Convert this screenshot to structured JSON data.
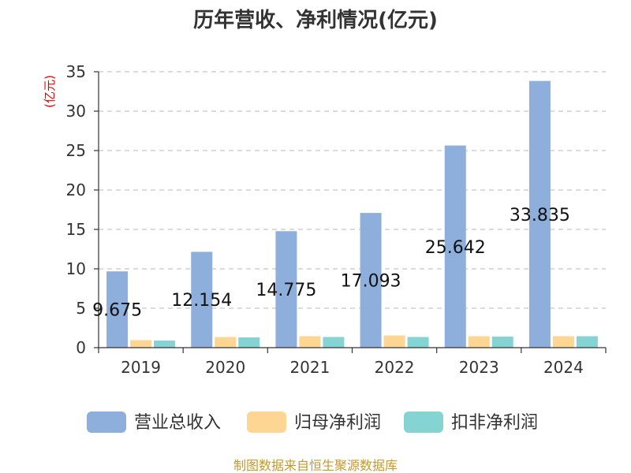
{
  "chart_data": {
    "type": "bar",
    "title": "历年营收、净利情况(亿元)",
    "ylabel": "(亿元)",
    "categories": [
      "2019",
      "2020",
      "2021",
      "2022",
      "2023",
      "2024"
    ],
    "ylim": [
      0,
      35
    ],
    "yticks": [
      0,
      5,
      10,
      15,
      20,
      25,
      30,
      35
    ],
    "grid": true,
    "legend_position": "bottom",
    "series": [
      {
        "name": "营业总收入",
        "color": "#8eaedb",
        "values": [
          9.675,
          12.154,
          14.775,
          17.093,
          25.642,
          33.835
        ],
        "labels": [
          "9.675",
          "12.154",
          "14.775",
          "17.093",
          "25.642",
          "33.835"
        ]
      },
      {
        "name": "归母净利润",
        "color": "#fcd692",
        "values": [
          0.95,
          1.35,
          1.45,
          1.55,
          1.45,
          1.45
        ]
      },
      {
        "name": "扣非净利润",
        "color": "#85d3d3",
        "values": [
          0.9,
          1.3,
          1.35,
          1.35,
          1.4,
          1.45
        ]
      }
    ],
    "source": "制图数据来自恒生聚源数据库"
  }
}
